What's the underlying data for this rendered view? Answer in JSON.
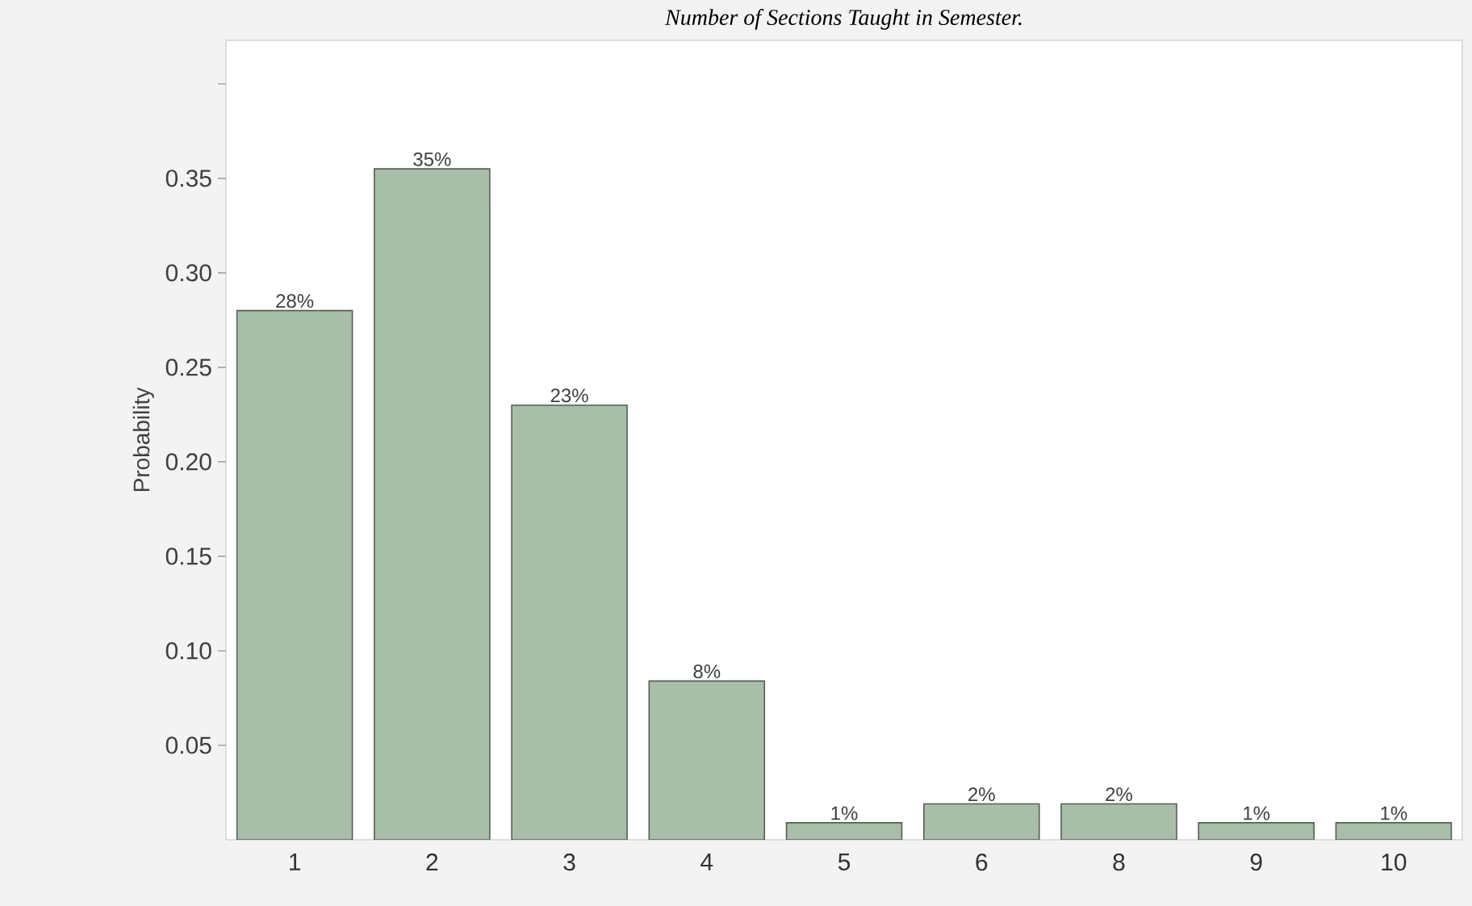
{
  "chart_data": {
    "type": "bar",
    "title": "Number of Sections Taught in Semester.",
    "ylabel": "Probability",
    "categories": [
      "1",
      "2",
      "3",
      "4",
      "5",
      "6",
      "8",
      "9",
      "10"
    ],
    "values": [
      0.28,
      0.355,
      0.23,
      0.084,
      0.009,
      0.019,
      0.019,
      0.009,
      0.009
    ],
    "value_labels": [
      "28%",
      "35%",
      "23%",
      "8%",
      "1%",
      "2%",
      "2%",
      "1%",
      "1%"
    ],
    "color": "#a9bea8",
    "ylim": [
      0,
      0.423
    ],
    "yticks": [
      0.05,
      {
        "value": 0.1,
        "label": "0.10"
      },
      0.15,
      {
        "value": 0.2,
        "label": "0.20"
      },
      0.25,
      {
        "value": 0.3,
        "label": "0.30"
      },
      0.35,
      {
        "value": 0.4,
        "label": null
      }
    ]
  }
}
